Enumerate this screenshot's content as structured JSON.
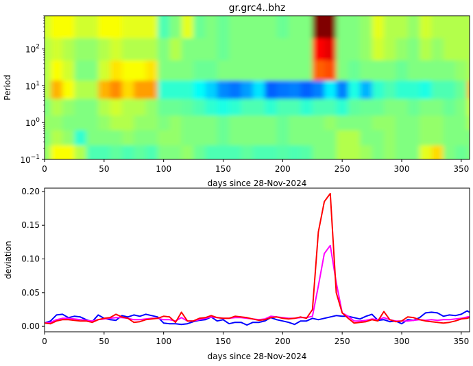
{
  "chart_data": [
    {
      "type": "heatmap",
      "title": "gr.grc4..bhz",
      "xlabel": "days since 28-Nov-2024",
      "ylabel": "Period",
      "xlim": [
        0,
        357
      ],
      "ylim": [
        0.1,
        800
      ],
      "yscale": "log",
      "colormap": "jet",
      "xticks": [
        0,
        50,
        100,
        150,
        200,
        250,
        300,
        350
      ],
      "yticks": [
        {
          "value": 0.1,
          "base": "10",
          "exp": "−1"
        },
        {
          "value": 1,
          "base": "10",
          "exp": "0"
        },
        {
          "value": 10,
          "base": "10",
          "exp": "1"
        },
        {
          "value": 100,
          "base": "10",
          "exp": "2"
        }
      ],
      "x": [
        0,
        10,
        20,
        30,
        40,
        50,
        60,
        70,
        80,
        90,
        100,
        110,
        120,
        130,
        140,
        150,
        160,
        170,
        180,
        190,
        200,
        210,
        220,
        230,
        240,
        250,
        260,
        270,
        280,
        290,
        300,
        310,
        320,
        330,
        340,
        350,
        360
      ],
      "periods": [
        0.15,
        0.4,
        1,
        2.5,
        8,
        25,
        100,
        400
      ],
      "values_normalized": [
        [
          0.52,
          0.62,
          0.62,
          0.55,
          0.45,
          0.45,
          0.47,
          0.45,
          0.47,
          0.45,
          0.5,
          0.5,
          0.52,
          0.48,
          0.45,
          0.45,
          0.45,
          0.47,
          0.45,
          0.45,
          0.46,
          0.45,
          0.46,
          0.5,
          0.5,
          0.55,
          0.55,
          0.53,
          0.5,
          0.52,
          0.5,
          0.5,
          0.6,
          0.66,
          0.5,
          0.48,
          0.5
        ],
        [
          0.5,
          0.55,
          0.52,
          0.42,
          0.5,
          0.5,
          0.5,
          0.52,
          0.5,
          0.5,
          0.52,
          0.52,
          0.5,
          0.5,
          0.5,
          0.48,
          0.5,
          0.5,
          0.5,
          0.5,
          0.48,
          0.5,
          0.5,
          0.5,
          0.5,
          0.55,
          0.55,
          0.5,
          0.5,
          0.52,
          0.5,
          0.5,
          0.52,
          0.52,
          0.5,
          0.5,
          0.5
        ],
        [
          0.52,
          0.52,
          0.5,
          0.5,
          0.5,
          0.52,
          0.55,
          0.55,
          0.52,
          0.52,
          0.5,
          0.52,
          0.5,
          0.5,
          0.5,
          0.48,
          0.5,
          0.5,
          0.5,
          0.5,
          0.48,
          0.5,
          0.5,
          0.5,
          0.52,
          0.5,
          0.5,
          0.5,
          0.52,
          0.52,
          0.5,
          0.5,
          0.52,
          0.52,
          0.5,
          0.5,
          0.55
        ],
        [
          0.5,
          0.55,
          0.52,
          0.5,
          0.5,
          0.55,
          0.58,
          0.55,
          0.55,
          0.52,
          0.48,
          0.48,
          0.47,
          0.45,
          0.42,
          0.4,
          0.42,
          0.45,
          0.45,
          0.42,
          0.45,
          0.45,
          0.42,
          0.45,
          0.45,
          0.42,
          0.47,
          0.48,
          0.48,
          0.5,
          0.5,
          0.48,
          0.5,
          0.5,
          0.48,
          0.5,
          0.58
        ],
        [
          0.55,
          0.7,
          0.62,
          0.55,
          0.55,
          0.7,
          0.74,
          0.66,
          0.72,
          0.72,
          0.42,
          0.42,
          0.42,
          0.38,
          0.33,
          0.26,
          0.24,
          0.28,
          0.35,
          0.22,
          0.24,
          0.25,
          0.22,
          0.25,
          0.36,
          0.25,
          0.4,
          0.3,
          0.42,
          0.45,
          0.42,
          0.42,
          0.4,
          0.45,
          0.45,
          0.48,
          0.7
        ],
        [
          0.55,
          0.62,
          0.58,
          0.5,
          0.5,
          0.58,
          0.65,
          0.62,
          0.62,
          0.65,
          0.5,
          0.5,
          0.5,
          0.48,
          0.48,
          0.5,
          0.5,
          0.5,
          0.5,
          0.5,
          0.5,
          0.5,
          0.5,
          0.78,
          0.8,
          0.5,
          0.48,
          0.5,
          0.5,
          0.5,
          0.48,
          0.5,
          0.5,
          0.5,
          0.5,
          0.52,
          0.55
        ],
        [
          0.55,
          0.58,
          0.55,
          0.52,
          0.52,
          0.55,
          0.58,
          0.55,
          0.55,
          0.55,
          0.5,
          0.55,
          0.5,
          0.5,
          0.5,
          0.48,
          0.5,
          0.5,
          0.5,
          0.5,
          0.5,
          0.5,
          0.5,
          0.87,
          0.9,
          0.5,
          0.5,
          0.52,
          0.58,
          0.55,
          0.52,
          0.5,
          0.55,
          0.52,
          0.55,
          0.55,
          0.55
        ],
        [
          0.58,
          0.62,
          0.62,
          0.58,
          0.58,
          0.62,
          0.62,
          0.6,
          0.6,
          0.6,
          0.45,
          0.5,
          0.6,
          0.48,
          0.5,
          0.48,
          0.5,
          0.5,
          0.5,
          0.5,
          0.48,
          0.5,
          0.5,
          1.0,
          1.0,
          0.5,
          0.5,
          0.52,
          0.6,
          0.55,
          0.55,
          0.52,
          0.58,
          0.55,
          0.55,
          0.55,
          0.55
        ]
      ]
    },
    {
      "type": "line",
      "xlabel": "days since 28-Nov-2024",
      "ylabel": "deviation",
      "xlim": [
        0,
        357
      ],
      "ylim": [
        -0.008,
        0.205
      ],
      "xticks": [
        0,
        50,
        100,
        150,
        200,
        250,
        300,
        350
      ],
      "yticks": [
        "0.00",
        "0.05",
        "0.10",
        "0.15",
        "0.20"
      ],
      "x": [
        0,
        5,
        10,
        15,
        20,
        25,
        30,
        35,
        40,
        45,
        50,
        55,
        60,
        65,
        70,
        75,
        80,
        85,
        90,
        95,
        100,
        105,
        110,
        115,
        120,
        125,
        130,
        135,
        140,
        145,
        150,
        155,
        160,
        165,
        170,
        175,
        180,
        185,
        190,
        195,
        200,
        205,
        210,
        215,
        220,
        225,
        230,
        235,
        240,
        245,
        250,
        255,
        260,
        265,
        270,
        275,
        280,
        285,
        290,
        295,
        300,
        305,
        310,
        315,
        320,
        325,
        330,
        335,
        340,
        345,
        350,
        355,
        360
      ],
      "series": [
        {
          "color": "#0000ff",
          "values": [
            0.005,
            0.008,
            0.017,
            0.018,
            0.013,
            0.015,
            0.014,
            0.01,
            0.007,
            0.017,
            0.012,
            0.01,
            0.009,
            0.016,
            0.014,
            0.017,
            0.015,
            0.018,
            0.016,
            0.014,
            0.005,
            0.004,
            0.004,
            0.003,
            0.004,
            0.007,
            0.009,
            0.01,
            0.014,
            0.008,
            0.01,
            0.004,
            0.006,
            0.006,
            0.002,
            0.006,
            0.006,
            0.008,
            0.013,
            0.01,
            0.008,
            0.006,
            0.003,
            0.008,
            0.008,
            0.012,
            0.01,
            0.012,
            0.014,
            0.016,
            0.015,
            0.015,
            0.013,
            0.011,
            0.015,
            0.018,
            0.009,
            0.01,
            0.007,
            0.008,
            0.004,
            0.01,
            0.009,
            0.013,
            0.02,
            0.021,
            0.02,
            0.015,
            0.017,
            0.016,
            0.018,
            0.023,
            0.018
          ]
        },
        {
          "color": "#ff00ff",
          "values": [
            0.005,
            0.006,
            0.01,
            0.012,
            0.012,
            0.011,
            0.01,
            0.009,
            0.008,
            0.01,
            0.011,
            0.012,
            0.013,
            0.013,
            0.012,
            0.01,
            0.01,
            0.011,
            0.012,
            0.012,
            0.01,
            0.01,
            0.008,
            0.013,
            0.008,
            0.008,
            0.01,
            0.012,
            0.014,
            0.013,
            0.012,
            0.012,
            0.013,
            0.013,
            0.012,
            0.011,
            0.01,
            0.011,
            0.015,
            0.014,
            0.013,
            0.012,
            0.012,
            0.013,
            0.013,
            0.015,
            0.06,
            0.108,
            0.12,
            0.065,
            0.02,
            0.015,
            0.008,
            0.008,
            0.009,
            0.011,
            0.01,
            0.013,
            0.01,
            0.008,
            0.008,
            0.008,
            0.009,
            0.01,
            0.009,
            0.01,
            0.009,
            0.01,
            0.01,
            0.011,
            0.012,
            0.014,
            0.015
          ]
        },
        {
          "color": "#ff0000",
          "values": [
            0.005,
            0.004,
            0.008,
            0.01,
            0.01,
            0.009,
            0.008,
            0.008,
            0.006,
            0.01,
            0.012,
            0.013,
            0.018,
            0.014,
            0.012,
            0.006,
            0.007,
            0.01,
            0.011,
            0.012,
            0.015,
            0.014,
            0.006,
            0.021,
            0.008,
            0.008,
            0.012,
            0.013,
            0.016,
            0.013,
            0.012,
            0.012,
            0.015,
            0.014,
            0.013,
            0.011,
            0.009,
            0.01,
            0.013,
            0.014,
            0.012,
            0.011,
            0.012,
            0.014,
            0.012,
            0.025,
            0.14,
            0.185,
            0.197,
            0.05,
            0.02,
            0.012,
            0.005,
            0.006,
            0.007,
            0.01,
            0.008,
            0.022,
            0.01,
            0.007,
            0.008,
            0.014,
            0.013,
            0.01,
            0.008,
            0.007,
            0.006,
            0.005,
            0.006,
            0.008,
            0.011,
            0.012,
            0.015
          ]
        }
      ]
    }
  ]
}
